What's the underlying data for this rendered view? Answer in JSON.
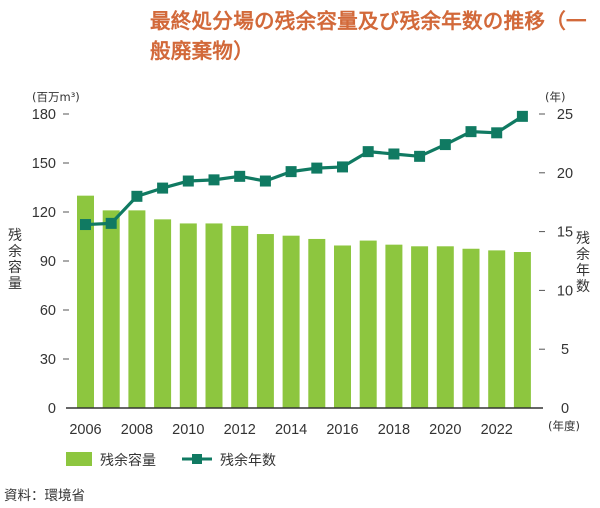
{
  "title": "最終処分場の残余容量及び残余年数の推移（一般廃棄物）",
  "source": "資料：環境省",
  "chart_data": {
    "type": "bar+line",
    "title": "最終処分場の残余容量及び残余年数の推移（一般廃棄物）",
    "categories": [
      "2006",
      "2007",
      "2008",
      "2009",
      "2010",
      "2011",
      "2012",
      "2013",
      "2014",
      "2015",
      "2016",
      "2017",
      "2018",
      "2019",
      "2020",
      "2021",
      "2022",
      "2023"
    ],
    "x_tick_labels": [
      "2006",
      "2008",
      "2010",
      "2012",
      "2014",
      "2016",
      "2018",
      "2020",
      "2022"
    ],
    "xlabel": "(年度)",
    "left_axis": {
      "unit": "(百万m³)",
      "label": "残余容量",
      "ylim": [
        0,
        180
      ],
      "ticks": [
        "0",
        "30",
        "60",
        "90",
        "120",
        "150",
        "180"
      ]
    },
    "right_axis": {
      "unit": "(年)",
      "label": "残余年数",
      "ylim": [
        0,
        25
      ],
      "ticks": [
        "0",
        "5",
        "10",
        "15",
        "20",
        "25"
      ]
    },
    "series": [
      {
        "name": "残余容量",
        "type": "bar",
        "axis": "left",
        "color": "#8dc63f",
        "values": [
          130.0,
          121.0,
          121.0,
          115.5,
          113.0,
          113.0,
          111.5,
          106.5,
          105.5,
          103.5,
          99.5,
          102.5,
          100.0,
          99.0,
          99.0,
          97.5,
          96.5,
          95.5
        ]
      },
      {
        "name": "残余年数",
        "type": "line",
        "axis": "right",
        "color": "#107a62",
        "values": [
          15.6,
          15.7,
          18.0,
          18.7,
          19.3,
          19.4,
          19.7,
          19.3,
          20.1,
          20.4,
          20.5,
          21.8,
          21.6,
          21.4,
          22.4,
          23.5,
          23.4,
          24.8
        ]
      }
    ],
    "legend": {
      "position": "bottom",
      "items": [
        {
          "label": "残余容量",
          "kind": "bar"
        },
        {
          "label": "残余年数",
          "kind": "line"
        }
      ]
    },
    "grid": false
  }
}
